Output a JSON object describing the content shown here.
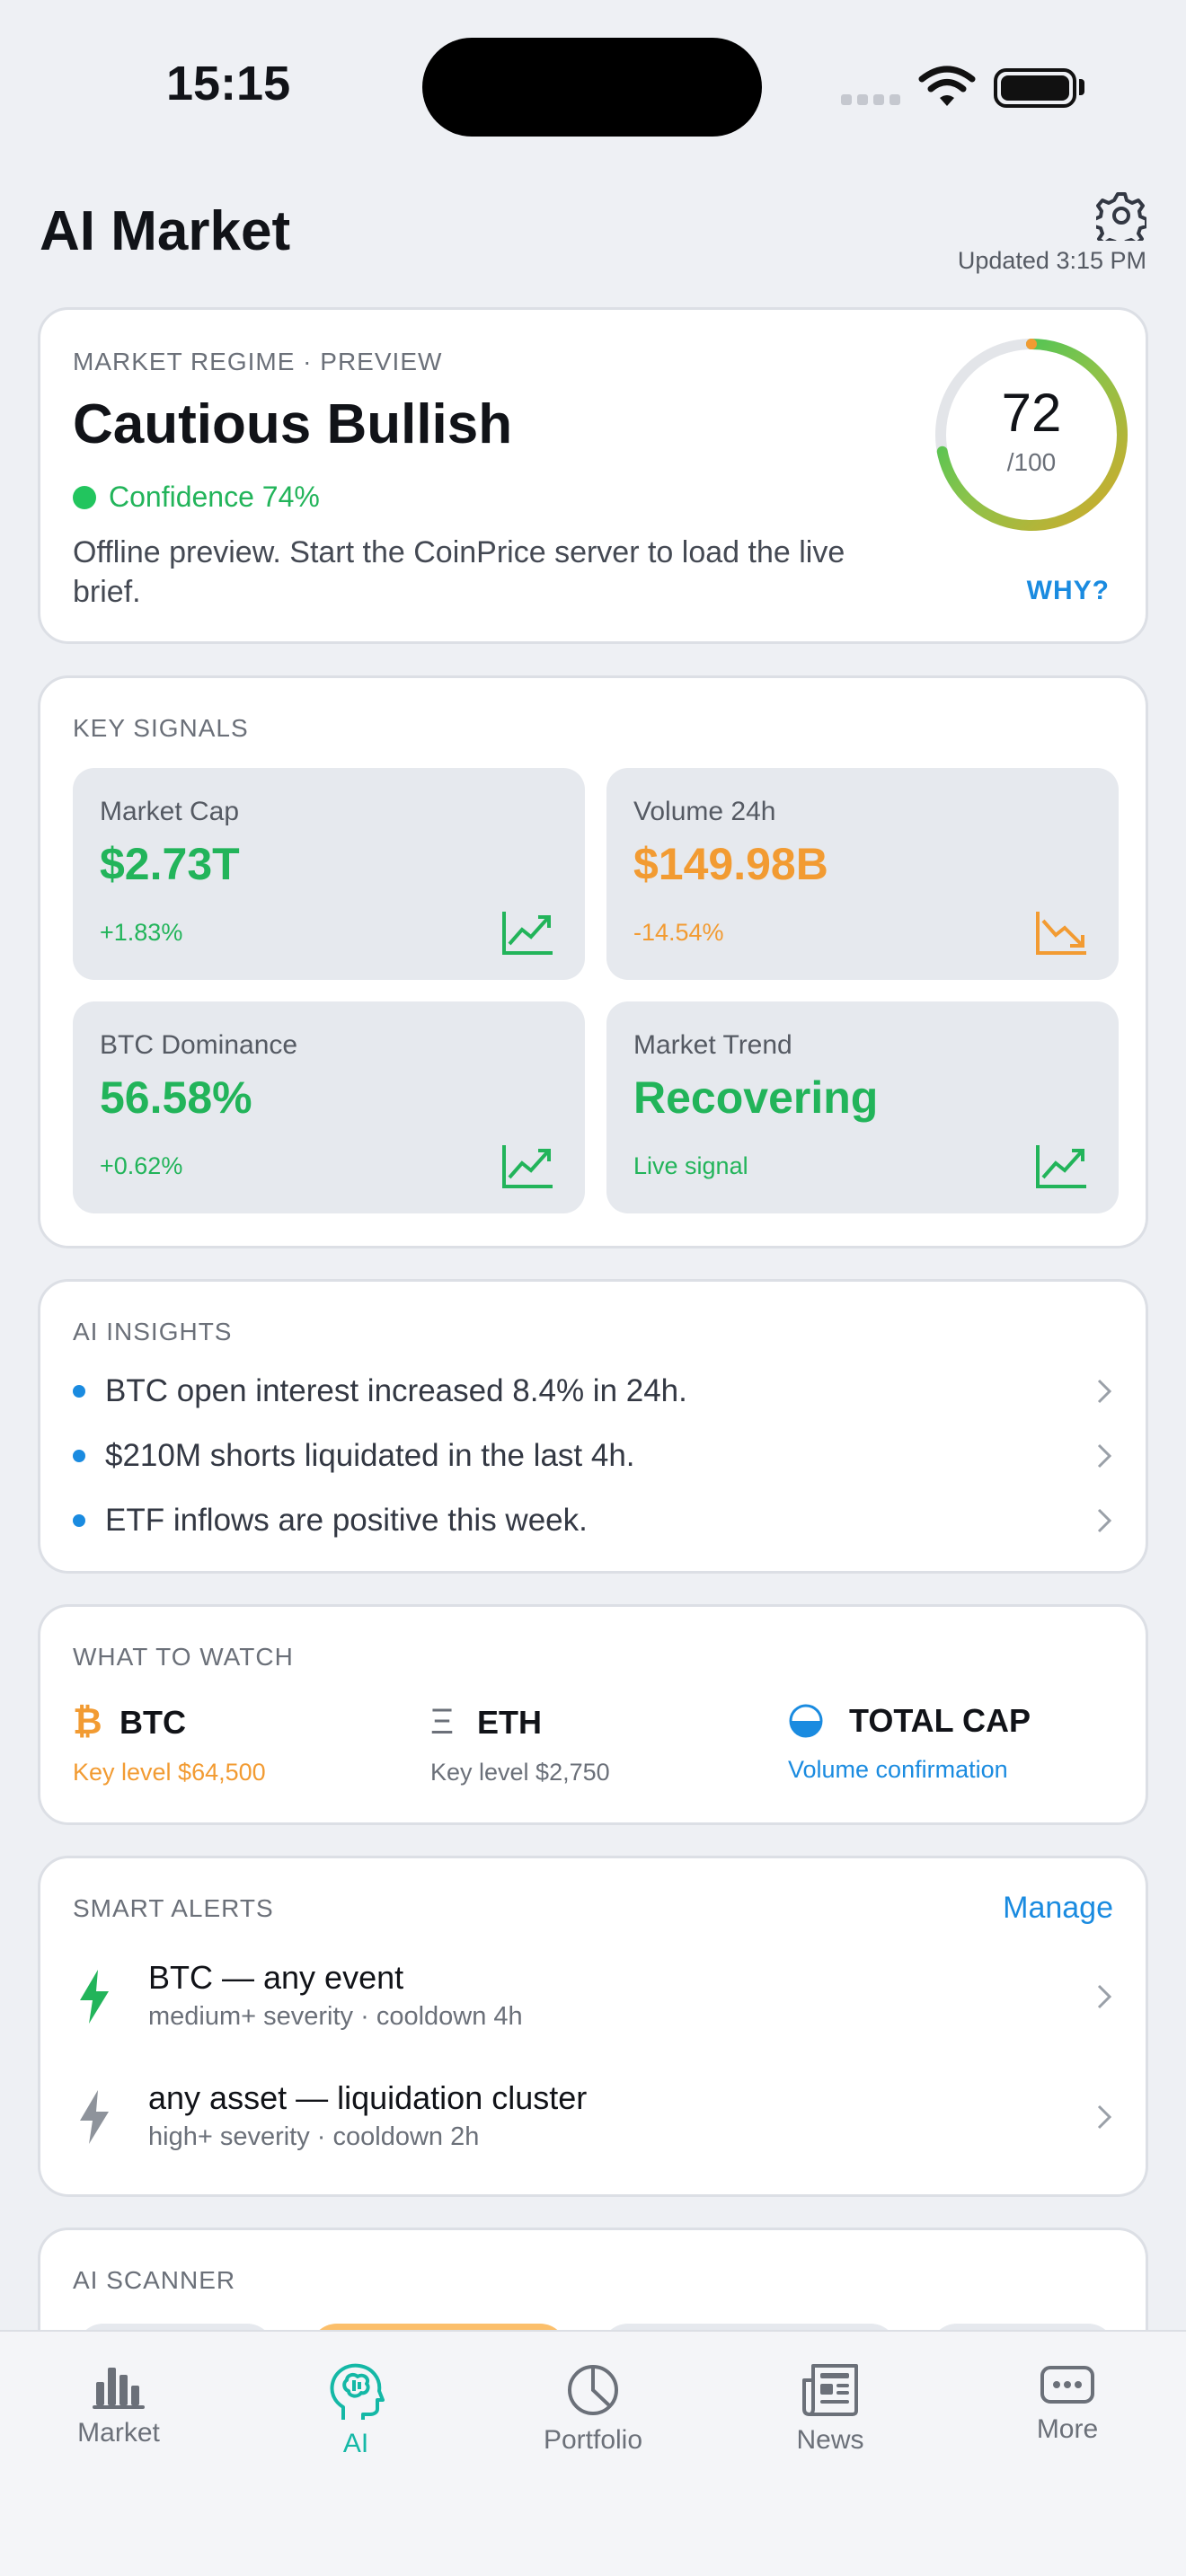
{
  "status": {
    "time": "15:15"
  },
  "header": {
    "title": "AI Market",
    "updated": "Updated 3:15 PM"
  },
  "regime": {
    "label": "MARKET REGIME · PREVIEW",
    "headline": "Cautious Bullish",
    "confidence": "Confidence 74%",
    "description": "Offline preview. Start the CoinPrice server to load the live brief.",
    "score": "72",
    "score_max": "/100",
    "score_fraction": 0.72,
    "why": "WHY?"
  },
  "signals": {
    "label": "KEY SIGNALS",
    "tiles": [
      {
        "label": "Market Cap",
        "value": "$2.73T",
        "change": "+1.83%",
        "tone": "up"
      },
      {
        "label": "Volume 24h",
        "value": "$149.98B",
        "change": "-14.54%",
        "tone": "down"
      },
      {
        "label": "BTC Dominance",
        "value": "56.58%",
        "change": "+0.62%",
        "tone": "up"
      },
      {
        "label": "Market Trend",
        "value": "Recovering",
        "change": "Live signal",
        "tone": "up"
      }
    ]
  },
  "insights": {
    "label": "AI INSIGHTS",
    "items": [
      "BTC open interest increased 8.4% in 24h.",
      "$210M shorts liquidated in the last 4h.",
      "ETF inflows are positive this week."
    ]
  },
  "watch": {
    "label": "WHAT TO WATCH",
    "items": [
      {
        "symbol": "BTC",
        "note": "Key level $64,500",
        "color": "#f29b32"
      },
      {
        "symbol": "ETH",
        "note": "Key level $2,750",
        "color": "#6b7079"
      },
      {
        "symbol": "TOTAL CAP",
        "note": "Volume confirmation",
        "color": "#1a8be0"
      }
    ]
  },
  "alerts": {
    "label": "SMART ALERTS",
    "manage": "Manage",
    "items": [
      {
        "title": "BTC — any event",
        "sub": "medium+ severity · cooldown 4h"
      },
      {
        "title": "any asset — liquidation cluster",
        "sub": "high+ severity · cooldown 2h"
      }
    ]
  },
  "scanner": {
    "label": "AI SCANNER"
  },
  "tabs": [
    {
      "label": "Market",
      "icon": "bar-chart-icon"
    },
    {
      "label": "AI",
      "icon": "brain-head-icon",
      "active": true
    },
    {
      "label": "Portfolio",
      "icon": "pie-chart-icon"
    },
    {
      "label": "News",
      "icon": "newspaper-icon"
    },
    {
      "label": "More",
      "icon": "ellipsis-icon"
    }
  ]
}
